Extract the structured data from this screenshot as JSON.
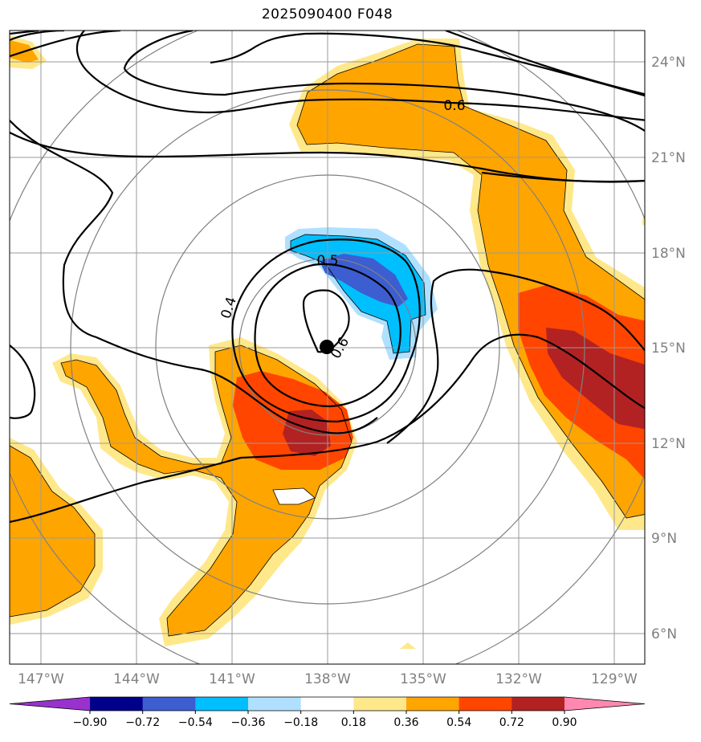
{
  "title": "2025090400 F048",
  "longitude_labels": [
    "147°W",
    "144°W",
    "141°W",
    "138°W",
    "135°W",
    "132°W",
    "129°W"
  ],
  "latitude_labels": [
    "24°N",
    "21°N",
    "18°N",
    "15°N",
    "12°N",
    "9°N",
    "6°N"
  ],
  "contour_labels": [
    "0.6",
    "0.5",
    "0.4",
    "0.6"
  ],
  "colorbar": {
    "ticks": [
      "−0.90",
      "−0.72",
      "−0.54",
      "−0.36",
      "−0.18",
      "0.18",
      "0.36",
      "0.54",
      "0.72",
      "0.90"
    ],
    "colors": [
      "#9932cc",
      "#00008b",
      "#3c5ed0",
      "#00bfff",
      "#b0e0ff",
      "#ffffff",
      "#ffe88a",
      "#ffa500",
      "#ff4500",
      "#b22222",
      "#ff88b0"
    ]
  },
  "storm_center": {
    "lon": -138.0,
    "lat": 15.0
  }
}
